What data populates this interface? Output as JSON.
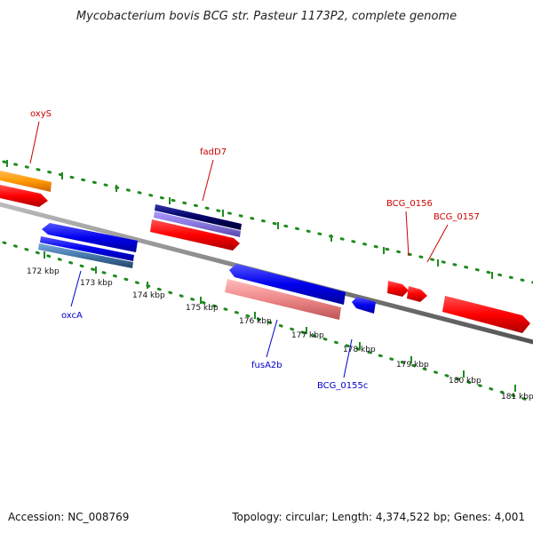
{
  "title": "Mycobacterium bovis BCG str. Pasteur 1173P2, complete genome",
  "footer": {
    "accession": "Accession: NC_008769",
    "summary": "Topology: circular; Length: 4,374,522 bp; Genes: 4,001"
  },
  "colors": {
    "forward_gene": "#ff0000",
    "reverse_gene": "#0000ee",
    "forward_label": "#cc0000",
    "reverse_label": "#0000cc",
    "orange_gene": "#ff9900",
    "navy_gene": "#000066",
    "purple_gene": "#8877dd",
    "pink_gene": "#ee8888",
    "steel_gene": "#4477aa",
    "backbone": "#808080",
    "ticks": "#1f8a1f"
  },
  "scale_labels": [
    "172 kbp",
    "173 kbp",
    "174 kbp",
    "175 kbp",
    "176 kbp",
    "177 kbp",
    "178 kbp",
    "179 kbp",
    "180 kbp",
    "181 kbp"
  ],
  "gene_labels": {
    "oxyS": "oxyS",
    "fadD7": "fadD7",
    "BCG_0156": "BCG_0156",
    "BCG_0157": "BCG_0157",
    "oxcA": "oxcA",
    "fusA2b": "fusA2b",
    "BCG_0155c": "BCG_0155c"
  }
}
